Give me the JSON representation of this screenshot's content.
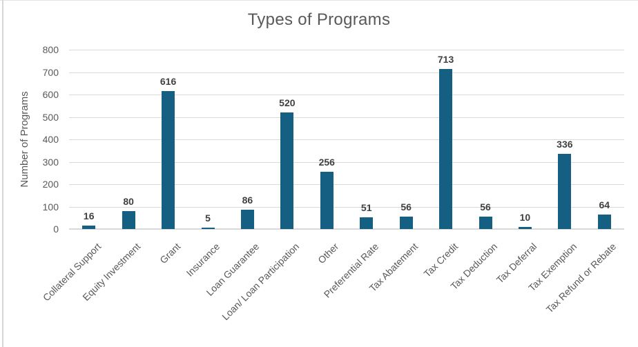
{
  "chart_data": {
    "type": "bar",
    "title": "Types of Programs",
    "xlabel": "",
    "ylabel": "Number of Programs",
    "categories": [
      "Collateral Support",
      "Equity Investment",
      "Grant",
      "Insurance",
      "Loan Guarantee",
      "Loan/ Loan Participation",
      "Other",
      "Preferential Rate",
      "Tax Abatement",
      "Tax Credit",
      "Tax Deduction",
      "Tax Deferral",
      "Tax Exemption",
      "Tax Refund or Rebate"
    ],
    "values": [
      16,
      80,
      616,
      5,
      86,
      520,
      256,
      51,
      56,
      713,
      56,
      10,
      336,
      64
    ],
    "ylim": [
      0,
      800
    ],
    "yticks": [
      0,
      100,
      200,
      300,
      400,
      500,
      600,
      700,
      800
    ],
    "grid": true,
    "legend": "none",
    "bar_color": "#156082",
    "gridline_color": "#d9d9d9",
    "value_label_color": "#404040",
    "axis_text_color": "#595959",
    "title_color": "#595959"
  }
}
